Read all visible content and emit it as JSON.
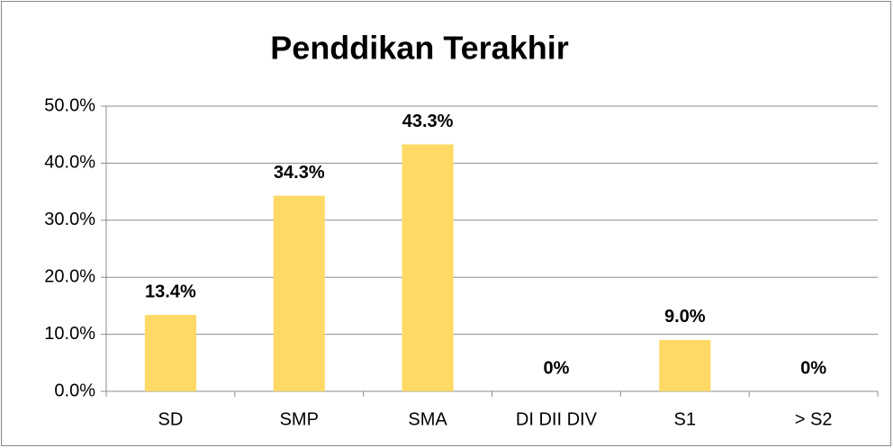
{
  "chart_data": {
    "type": "bar",
    "title": "Penddikan Terakhir",
    "categories": [
      "SD",
      "SMP",
      "SMA",
      "DI DII DIV",
      "S1",
      "> S2"
    ],
    "values": [
      13.4,
      34.3,
      43.3,
      0,
      9.0,
      0
    ],
    "value_labels": [
      "13.4%",
      "34.3%",
      "43.3%",
      "0%",
      "9.0%",
      "0%"
    ],
    "color": "#ffd966",
    "ylim": [
      0,
      50
    ],
    "yticks": [
      {
        "value": 0,
        "label": "0.0%"
      },
      {
        "value": 10,
        "label": "10.0%"
      },
      {
        "value": 20,
        "label": "20.0%"
      },
      {
        "value": 30,
        "label": "30.0%"
      },
      {
        "value": 40,
        "label": "40.0%"
      },
      {
        "value": 50,
        "label": "50.0%"
      }
    ],
    "grid": true
  }
}
